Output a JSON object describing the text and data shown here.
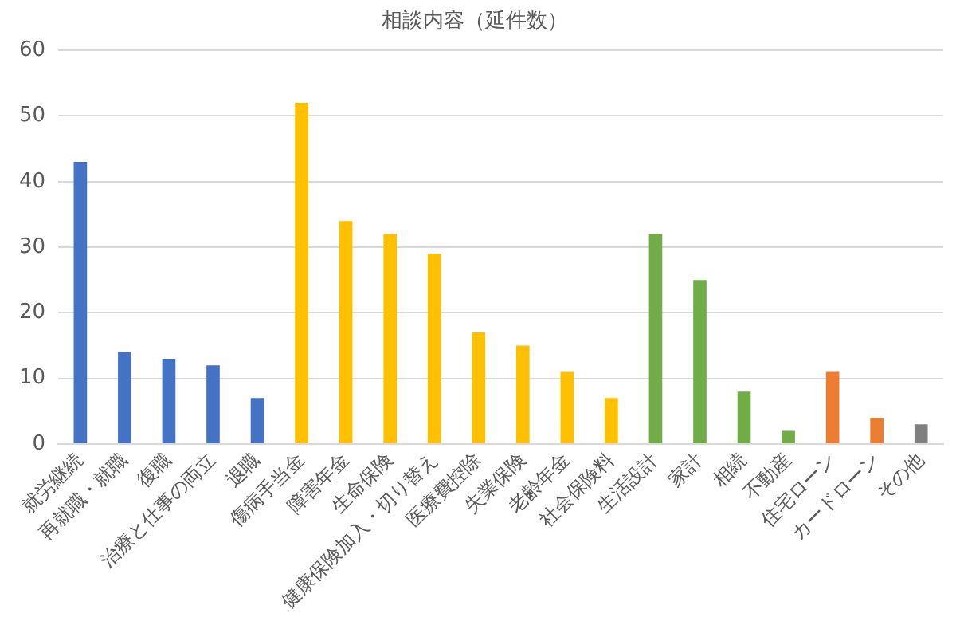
{
  "chart_data": {
    "type": "bar",
    "title": "相談内容（延件数）",
    "categories": [
      "就労継続",
      "再就職・就職",
      "復職",
      "治療と仕事の両立",
      "退職",
      "傷病手当金",
      "障害年金",
      "生命保険",
      "健康保険加入・切り替え",
      "医療費控除",
      "失業保険",
      "老齢年金",
      "社会保険料",
      "生活設計",
      "家計",
      "相続",
      "不動産",
      "住宅ローン",
      "カードローン",
      "その他"
    ],
    "values": [
      43,
      14,
      13,
      12,
      7,
      52,
      34,
      32,
      29,
      17,
      15,
      11,
      7,
      32,
      25,
      8,
      2,
      11,
      4,
      3
    ],
    "colors": [
      "#4472c4",
      "#4472c4",
      "#4472c4",
      "#4472c4",
      "#4472c4",
      "#ffc000",
      "#ffc000",
      "#ffc000",
      "#ffc000",
      "#ffc000",
      "#ffc000",
      "#ffc000",
      "#ffc000",
      "#70ad47",
      "#70ad47",
      "#70ad47",
      "#70ad47",
      "#ed7d31",
      "#ed7d31",
      "#7f7f7f"
    ],
    "ylim": [
      0,
      60
    ],
    "yticks": [
      0,
      10,
      20,
      30,
      40,
      50,
      60
    ],
    "grid": "y",
    "legend": false
  }
}
